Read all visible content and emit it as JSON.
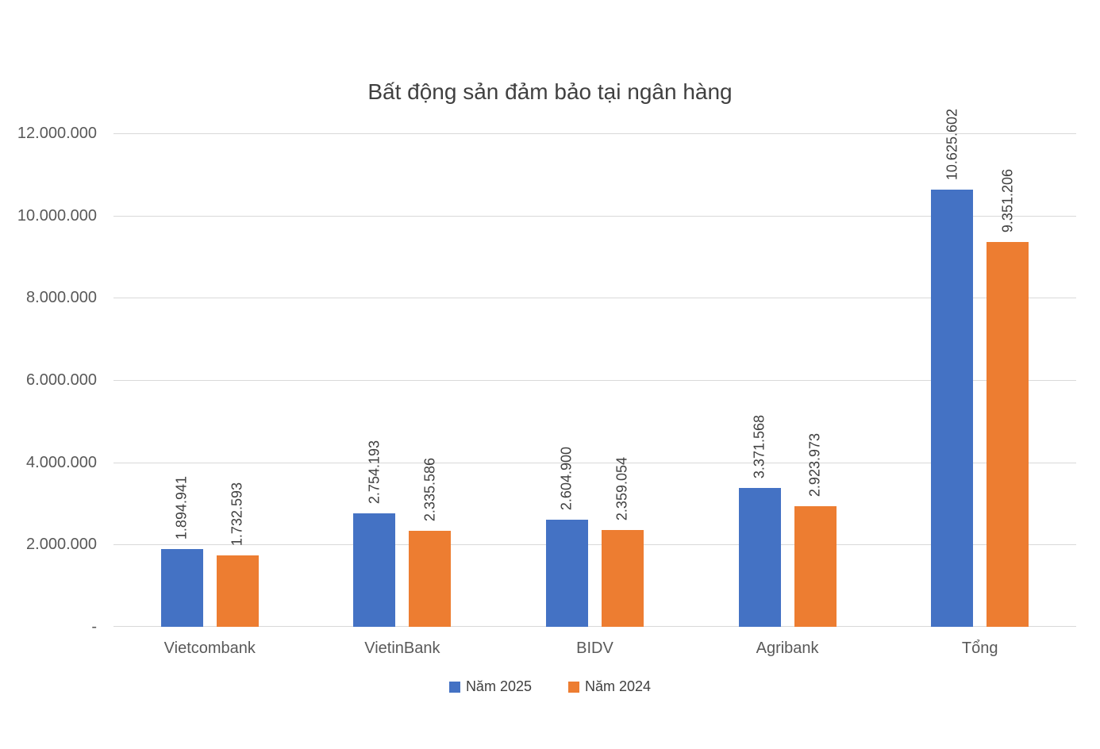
{
  "title": "Bất động sản đảm bảo tại ngân hàng",
  "chart_data": {
    "type": "bar",
    "title": "Bất động sản đảm bảo tại ngân hàng",
    "categories": [
      "Vietcombank",
      "VietinBank",
      "BIDV",
      "Agribank",
      "Tổng"
    ],
    "series": [
      {
        "name": "Năm 2025",
        "color": "#4472C4",
        "values": [
          1894941,
          2754193,
          2604900,
          3371568,
          10625602
        ],
        "labels": [
          "1.894.941",
          "2.754.193",
          "2.604.900",
          "3.371.568",
          "10.625.602"
        ]
      },
      {
        "name": "Năm 2024",
        "color": "#ED7D31",
        "values": [
          1732593,
          2335586,
          2359054,
          2923973,
          9351206
        ],
        "labels": [
          "1.732.593",
          "2.335.586",
          "2.359.054",
          "2.923.973",
          "9.351.206"
        ]
      }
    ],
    "y_axis": {
      "min": 0,
      "max": 12000000,
      "tick_interval": 2000000,
      "tick_labels": [
        "12.000.000",
        "10.000.000",
        "8.000.000",
        "6.000.000",
        "4.000.000",
        "2.000.000",
        "-"
      ]
    },
    "grid": true,
    "gridline_color": "#d9d9d9",
    "legend_position": "bottom",
    "data_label_rotation": "vertical"
  }
}
